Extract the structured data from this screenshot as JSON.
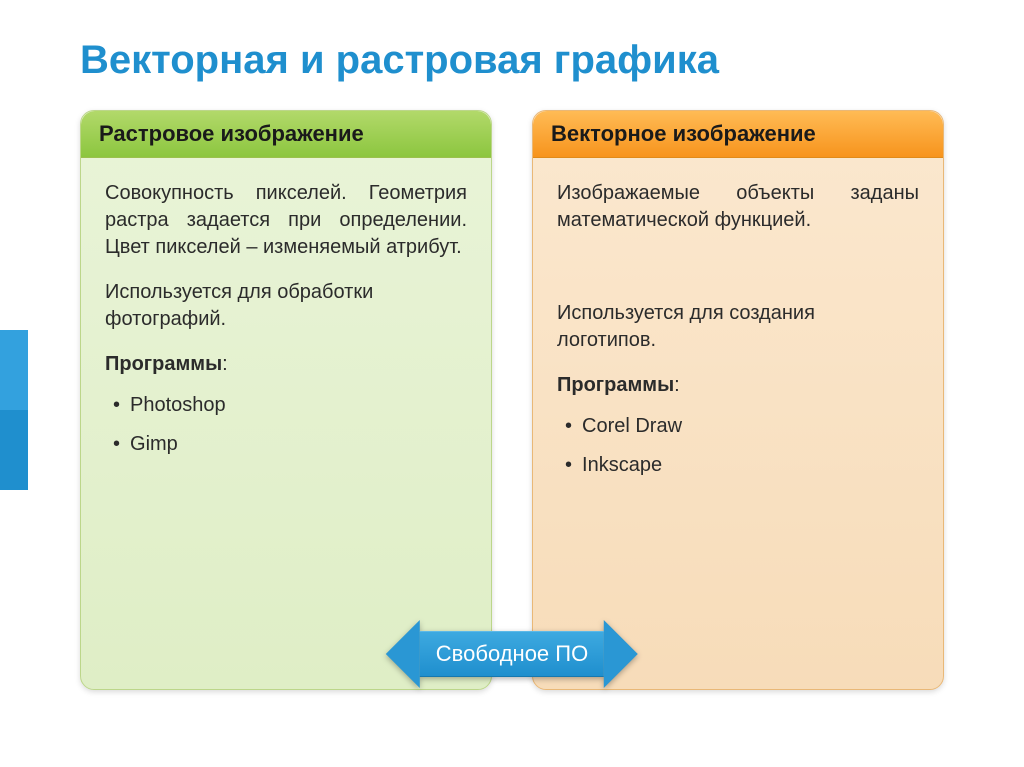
{
  "title": {
    "text": "Векторная и растровая графика",
    "color": "#1f8fce"
  },
  "accent": {
    "top_color": "#33a1de",
    "bottom_color": "#1f8fce"
  },
  "cards": {
    "left": {
      "header": "Растровое изображение",
      "header_bg_from": "#b2d96a",
      "header_bg_to": "#8cc63f",
      "body_bg_from": "#e9f4d8",
      "body_bg_to": "#dfeec6",
      "border_color": "#bcd68a",
      "para1": "Совокупность пикселей. Геометрия растра задается при определении. Цвет пикселей – изменяемый атрибут.",
      "para2": "Используется для обработки фотографий.",
      "programs_label": "Программы",
      "programs": [
        "Photoshop",
        "Gimp"
      ]
    },
    "right": {
      "header": "Векторное изображение",
      "header_bg_from": "#ffbb55",
      "header_bg_to": "#f7941d",
      "body_bg_from": "#fbe8cf",
      "body_bg_to": "#f7dcb9",
      "border_color": "#e9b877",
      "para1": "Изображаемые объекты заданы математической функцией.",
      "para2": "Используется для создания логотипов.",
      "programs_label": "Программы",
      "programs": [
        "Corel Draw",
        "Inkscape"
      ]
    }
  },
  "arrow": {
    "label": "Свободное ПО",
    "bg_from": "#3da9e0",
    "bg_to": "#1f8fce",
    "text_color": "#ffffff"
  }
}
